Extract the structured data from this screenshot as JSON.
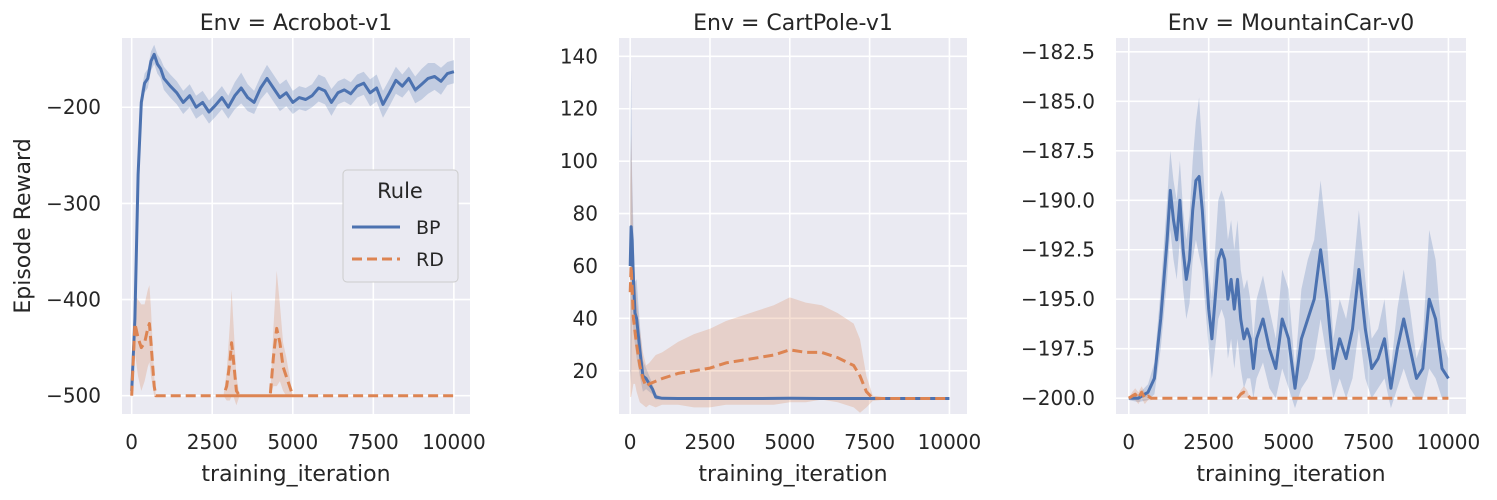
{
  "shared": {
    "ylabel": "Episode Reward",
    "xlabel": "training_iteration",
    "legend": {
      "title": "Rule",
      "placement": "center-right",
      "entries": [
        {
          "label": "BP",
          "color": "#4c72b0",
          "style": "solid"
        },
        {
          "label": "RD",
          "color": "#dd8452",
          "style": "dashed"
        }
      ]
    },
    "style": {
      "background": "#eaeaf2",
      "grid": true,
      "grid_color": "#ffffff"
    }
  },
  "chart_data": [
    {
      "type": "line",
      "title": "Env = Acrobot-v1",
      "xlabel": "training_iteration",
      "ylabel": "Episode Reward",
      "xlim": [
        -300,
        10500
      ],
      "ylim": [
        -519,
        -128
      ],
      "xticks": [
        0,
        2500,
        5000,
        7500,
        10000
      ],
      "xtick_labels": [
        "0",
        "2500",
        "5000",
        "7500",
        "10000"
      ],
      "yticks": [
        -500,
        -400,
        -300,
        -200
      ],
      "ytick_labels": [
        "−500",
        "−400",
        "−300",
        "−200"
      ],
      "series": [
        {
          "name": "BP",
          "color": "#4c72b0",
          "dash": "solid",
          "x": [
            0,
            100,
            200,
            300,
            400,
            500,
            600,
            700,
            800,
            900,
            1000,
            1200,
            1400,
            1600,
            1800,
            2000,
            2200,
            2400,
            2600,
            2800,
            3000,
            3200,
            3400,
            3600,
            3800,
            4000,
            4200,
            4400,
            4600,
            4800,
            5000,
            5200,
            5400,
            5600,
            5800,
            6000,
            6200,
            6400,
            6600,
            6800,
            7000,
            7200,
            7400,
            7600,
            7800,
            8000,
            8200,
            8400,
            8600,
            8800,
            9000,
            9200,
            9400,
            9600,
            9800,
            10000
          ],
          "y": [
            -495,
            -420,
            -270,
            -195,
            -175,
            -170,
            -152,
            -145,
            -155,
            -160,
            -170,
            -178,
            -185,
            -195,
            -188,
            -200,
            -195,
            -205,
            -198,
            -190,
            -200,
            -188,
            -180,
            -190,
            -195,
            -180,
            -170,
            -180,
            -190,
            -185,
            -195,
            -190,
            -192,
            -188,
            -180,
            -183,
            -195,
            -185,
            -182,
            -186,
            -178,
            -175,
            -185,
            -180,
            -197,
            -185,
            -172,
            -178,
            -170,
            -182,
            -176,
            -170,
            -168,
            -173,
            -165,
            -163
          ],
          "band": [
            6,
            10,
            25,
            12,
            10,
            10,
            10,
            10,
            10,
            10,
            12,
            12,
            12,
            12,
            12,
            12,
            12,
            12,
            12,
            12,
            12,
            14,
            16,
            14,
            12,
            12,
            14,
            14,
            14,
            14,
            12,
            12,
            12,
            12,
            14,
            14,
            14,
            12,
            12,
            12,
            12,
            12,
            14,
            14,
            14,
            14,
            14,
            12,
            12,
            14,
            16,
            16,
            14,
            14,
            12,
            12
          ]
        },
        {
          "name": "RD",
          "color": "#dd8452",
          "dash": "dashed",
          "x": [
            0,
            100,
            200,
            300,
            400,
            500,
            550,
            600,
            700,
            750,
            5200,
            2850,
            2950,
            3050,
            3100,
            3150,
            3250,
            3350,
            4300,
            4400,
            4500,
            4600,
            4700,
            4800,
            4900,
            5000,
            10000
          ],
          "y": [
            -500,
            -425,
            -440,
            -450,
            -445,
            -430,
            -425,
            -445,
            -490,
            -500,
            -500,
            -500,
            -490,
            -465,
            -445,
            -460,
            -495,
            -500,
            -500,
            -460,
            -430,
            -445,
            -470,
            -480,
            -490,
            -500,
            -500
          ],
          "band": [
            5,
            30,
            40,
            45,
            40,
            40,
            40,
            35,
            10,
            0,
            0,
            0,
            15,
            40,
            55,
            40,
            15,
            0,
            0,
            30,
            60,
            40,
            25,
            20,
            10,
            0,
            0
          ]
        }
      ]
    },
    {
      "type": "line",
      "title": "Env = CartPole-v1",
      "xlabel": "training_iteration",
      "ylabel": "",
      "xlim": [
        -350,
        10550
      ],
      "ylim": [
        3.5,
        147
      ],
      "xticks": [
        0,
        2500,
        5000,
        7500,
        10000
      ],
      "xtick_labels": [
        "0",
        "2500",
        "5000",
        "7500",
        "10000"
      ],
      "yticks": [
        20,
        40,
        60,
        80,
        100,
        120,
        140
      ],
      "ytick_labels": [
        "20",
        "40",
        "60",
        "80",
        "100",
        "120",
        "140"
      ],
      "series": [
        {
          "name": "BP",
          "color": "#4c72b0",
          "dash": "solid",
          "x": [
            0,
            30,
            60,
            100,
            150,
            200,
            300,
            400,
            500,
            600,
            700,
            800,
            1000,
            1500,
            2000,
            3000,
            4000,
            5000,
            6000,
            7000,
            8000,
            9000,
            10000
          ],
          "y": [
            60,
            75,
            70,
            55,
            42,
            40,
            28,
            18,
            17,
            15,
            13,
            10,
            9.5,
            9.4,
            9.4,
            9.4,
            9.4,
            9.5,
            9.4,
            9.4,
            9.4,
            9.4,
            9.4
          ],
          "band": [
            40,
            60,
            25,
            20,
            12,
            15,
            10,
            6,
            4,
            3,
            2,
            1,
            0.5,
            0.4,
            0.4,
            0.4,
            0.4,
            0.4,
            0.4,
            0.4,
            0.4,
            0.4,
            0.4
          ]
        },
        {
          "name": "RD",
          "color": "#dd8452",
          "dash": "dashed",
          "x": [
            0,
            30,
            60,
            100,
            150,
            200,
            300,
            400,
            500,
            600,
            800,
            1000,
            1500,
            2000,
            2500,
            3000,
            3500,
            4000,
            4500,
            5000,
            5500,
            6000,
            6500,
            7000,
            7200,
            7400,
            7600,
            8000,
            9000,
            10000
          ],
          "y": [
            50,
            60,
            52,
            40,
            35,
            30,
            22,
            17,
            14,
            15,
            16,
            17,
            19,
            20,
            21,
            23,
            24,
            25,
            26,
            28,
            27,
            27,
            25,
            22,
            18,
            12,
            9.5,
            9.4,
            9.4,
            9.4
          ],
          "band": [
            40,
            50,
            40,
            25,
            20,
            18,
            14,
            10,
            8,
            8,
            10,
            10,
            12,
            14,
            15,
            16,
            17,
            18,
            19,
            20,
            19,
            18,
            17,
            16,
            14,
            6,
            1,
            0.4,
            0.4,
            0.4
          ]
        }
      ]
    },
    {
      "type": "line",
      "title": "Env = MountainCar-v0",
      "xlabel": "training_iteration",
      "ylabel": "",
      "xlim": [
        -400,
        10550
      ],
      "ylim": [
        -200.8,
        -181.8
      ],
      "xticks": [
        0,
        2500,
        5000,
        7500,
        10000
      ],
      "xtick_labels": [
        "0",
        "2500",
        "5000",
        "7500",
        "10000"
      ],
      "yticks": [
        -200,
        -197.5,
        -195,
        -192.5,
        -190,
        -187.5,
        -185,
        -182.5
      ],
      "ytick_labels": [
        "−200.0",
        "−197.5",
        "−195.0",
        "−192.5",
        "−190.0",
        "−187.5",
        "−185.0",
        "−182.5"
      ],
      "series": [
        {
          "name": "BP",
          "color": "#4c72b0",
          "dash": "solid",
          "x": [
            0,
            300,
            600,
            800,
            1000,
            1200,
            1300,
            1400,
            1500,
            1600,
            1700,
            1800,
            1900,
            2000,
            2100,
            2200,
            2300,
            2400,
            2500,
            2600,
            2700,
            2800,
            2900,
            3000,
            3100,
            3200,
            3300,
            3400,
            3500,
            3600,
            3700,
            3800,
            3900,
            4000,
            4200,
            4400,
            4600,
            4800,
            5000,
            5200,
            5400,
            5600,
            5800,
            6000,
            6200,
            6400,
            6600,
            6800,
            7000,
            7200,
            7400,
            7600,
            7800,
            8000,
            8200,
            8400,
            8600,
            8800,
            9000,
            9200,
            9400,
            9600,
            9800,
            10000
          ],
          "y": [
            -200,
            -200,
            -199.7,
            -199,
            -196,
            -192,
            -189.5,
            -191,
            -192,
            -190,
            -192.5,
            -194,
            -193,
            -190.5,
            -189,
            -188.8,
            -190.5,
            -193,
            -195.5,
            -197,
            -195,
            -193,
            -192.5,
            -193,
            -195,
            -194,
            -195.5,
            -194,
            -196,
            -197,
            -196.5,
            -197,
            -198.5,
            -197,
            -196,
            -197.5,
            -198.5,
            -196,
            -197,
            -199.5,
            -197,
            -196,
            -195,
            -192.5,
            -195,
            -198.5,
            -197,
            -198,
            -196.5,
            -193.5,
            -196.5,
            -198.5,
            -198,
            -197,
            -199.5,
            -197.5,
            -196,
            -197.5,
            -199,
            -198.5,
            -195,
            -196,
            -198.5,
            -199
          ],
          "band": [
            0.1,
            0.2,
            0.4,
            0.8,
            1.5,
            2,
            2,
            2,
            2,
            2,
            2,
            2,
            2.2,
            2.5,
            3,
            4,
            3,
            2.5,
            2,
            2,
            2.5,
            3,
            3,
            3,
            3,
            3,
            3,
            3,
            2.5,
            2.5,
            2.5,
            2,
            1.5,
            2,
            2.2,
            2,
            1.5,
            2.5,
            2.5,
            1,
            2.5,
            3,
            3,
            3.5,
            3,
            1.5,
            2,
            2,
            2.5,
            3,
            2.5,
            1.5,
            1.5,
            2,
            1,
            2,
            2.5,
            2,
            1,
            1.5,
            3.5,
            3,
            1.5,
            1
          ]
        },
        {
          "name": "RD",
          "color": "#dd8452",
          "dash": "dashed",
          "x": [
            0,
            100,
            200,
            300,
            400,
            500,
            600,
            700,
            800,
            3400,
            3500,
            3600,
            3700,
            3800,
            10000
          ],
          "y": [
            -200,
            -199.9,
            -199.8,
            -200,
            -199.7,
            -200,
            -199.9,
            -200,
            -200,
            -200,
            -199.8,
            -199.7,
            -199.8,
            -200,
            -200
          ],
          "band": [
            0,
            0.2,
            0.3,
            0.3,
            0.3,
            0.3,
            0.2,
            0.1,
            0,
            0,
            0.2,
            0.3,
            0.2,
            0,
            0
          ]
        }
      ]
    }
  ]
}
